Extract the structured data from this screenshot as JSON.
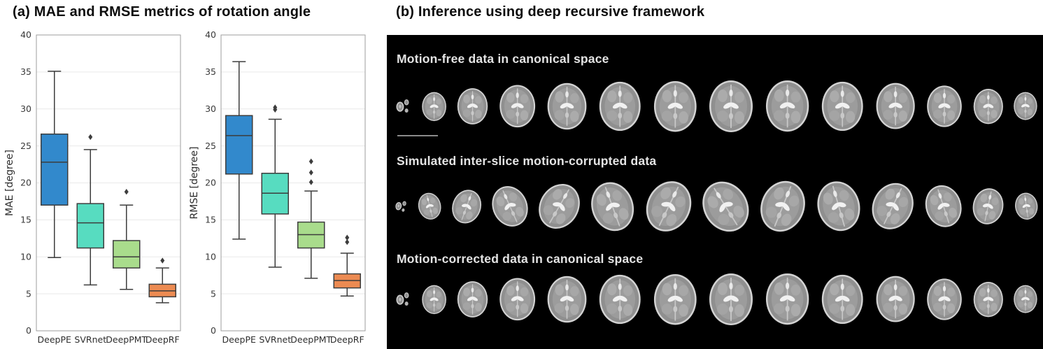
{
  "panel_a": {
    "title": "(a) MAE and RMSE metrics of rotation angle"
  },
  "panel_b": {
    "title": "(b) Inference using deep recursive framework",
    "background": "#000000",
    "rows": [
      {
        "label": "Motion-free data in canonical space",
        "slice_count": 14,
        "style": "aligned",
        "has_scalebar": true
      },
      {
        "label": "Simulated inter-slice motion-corrupted data",
        "slice_count": 14,
        "style": "corrupted",
        "has_scalebar": false
      },
      {
        "label": "Motion-corrected data in canonical space",
        "slice_count": 14,
        "style": "aligned",
        "has_scalebar": false
      }
    ]
  },
  "chart_data": [
    {
      "type": "box",
      "title": "",
      "xlabel": "",
      "ylabel": "MAE [degree]",
      "ylim": [
        0,
        40
      ],
      "yticks": [
        0,
        5,
        10,
        15,
        20,
        25,
        30,
        35,
        40
      ],
      "grid": true,
      "legend": false,
      "categories": [
        "DeepPE",
        "SVRnet",
        "DeepPMT",
        "DeepRF"
      ],
      "box_colors": [
        "#3289cc",
        "#57dcc0",
        "#a9dc8c",
        "#ec8b52"
      ],
      "series": [
        {
          "category": "DeepPE",
          "whisker_low": 9.9,
          "q1": 17.0,
          "median": 22.8,
          "q3": 26.6,
          "whisker_high": 35.1,
          "outliers": []
        },
        {
          "category": "SVRnet",
          "whisker_low": 6.2,
          "q1": 11.2,
          "median": 14.6,
          "q3": 17.2,
          "whisker_high": 24.5,
          "outliers": [
            26.2
          ]
        },
        {
          "category": "DeepPMT",
          "whisker_low": 5.6,
          "q1": 8.5,
          "median": 10.0,
          "q3": 12.2,
          "whisker_high": 17.0,
          "outliers": [
            18.8
          ]
        },
        {
          "category": "DeepRF",
          "whisker_low": 3.8,
          "q1": 4.6,
          "median": 5.4,
          "q3": 6.3,
          "whisker_high": 8.5,
          "outliers": [
            9.5
          ]
        }
      ]
    },
    {
      "type": "box",
      "title": "",
      "xlabel": "",
      "ylabel": "RMSE [degree]",
      "ylim": [
        0,
        40
      ],
      "yticks": [
        0,
        5,
        10,
        15,
        20,
        25,
        30,
        35,
        40
      ],
      "grid": true,
      "legend": false,
      "categories": [
        "DeepPE",
        "SVRnet",
        "DeepPMT",
        "DeepRF"
      ],
      "box_colors": [
        "#3289cc",
        "#57dcc0",
        "#a9dc8c",
        "#ec8b52"
      ],
      "series": [
        {
          "category": "DeepPE",
          "whisker_low": 12.4,
          "q1": 21.2,
          "median": 26.4,
          "q3": 29.1,
          "whisker_high": 36.4,
          "outliers": []
        },
        {
          "category": "SVRnet",
          "whisker_low": 8.6,
          "q1": 15.8,
          "median": 18.6,
          "q3": 21.3,
          "whisker_high": 28.6,
          "outliers": [
            29.9,
            30.2
          ]
        },
        {
          "category": "DeepPMT",
          "whisker_low": 7.1,
          "q1": 11.2,
          "median": 13.0,
          "q3": 14.7,
          "whisker_high": 18.9,
          "outliers": [
            20.1,
            21.4,
            22.9
          ]
        },
        {
          "category": "DeepRF",
          "whisker_low": 4.7,
          "q1": 5.8,
          "median": 6.8,
          "q3": 7.7,
          "whisker_high": 10.5,
          "outliers": [
            12.0,
            12.6
          ]
        }
      ]
    }
  ]
}
